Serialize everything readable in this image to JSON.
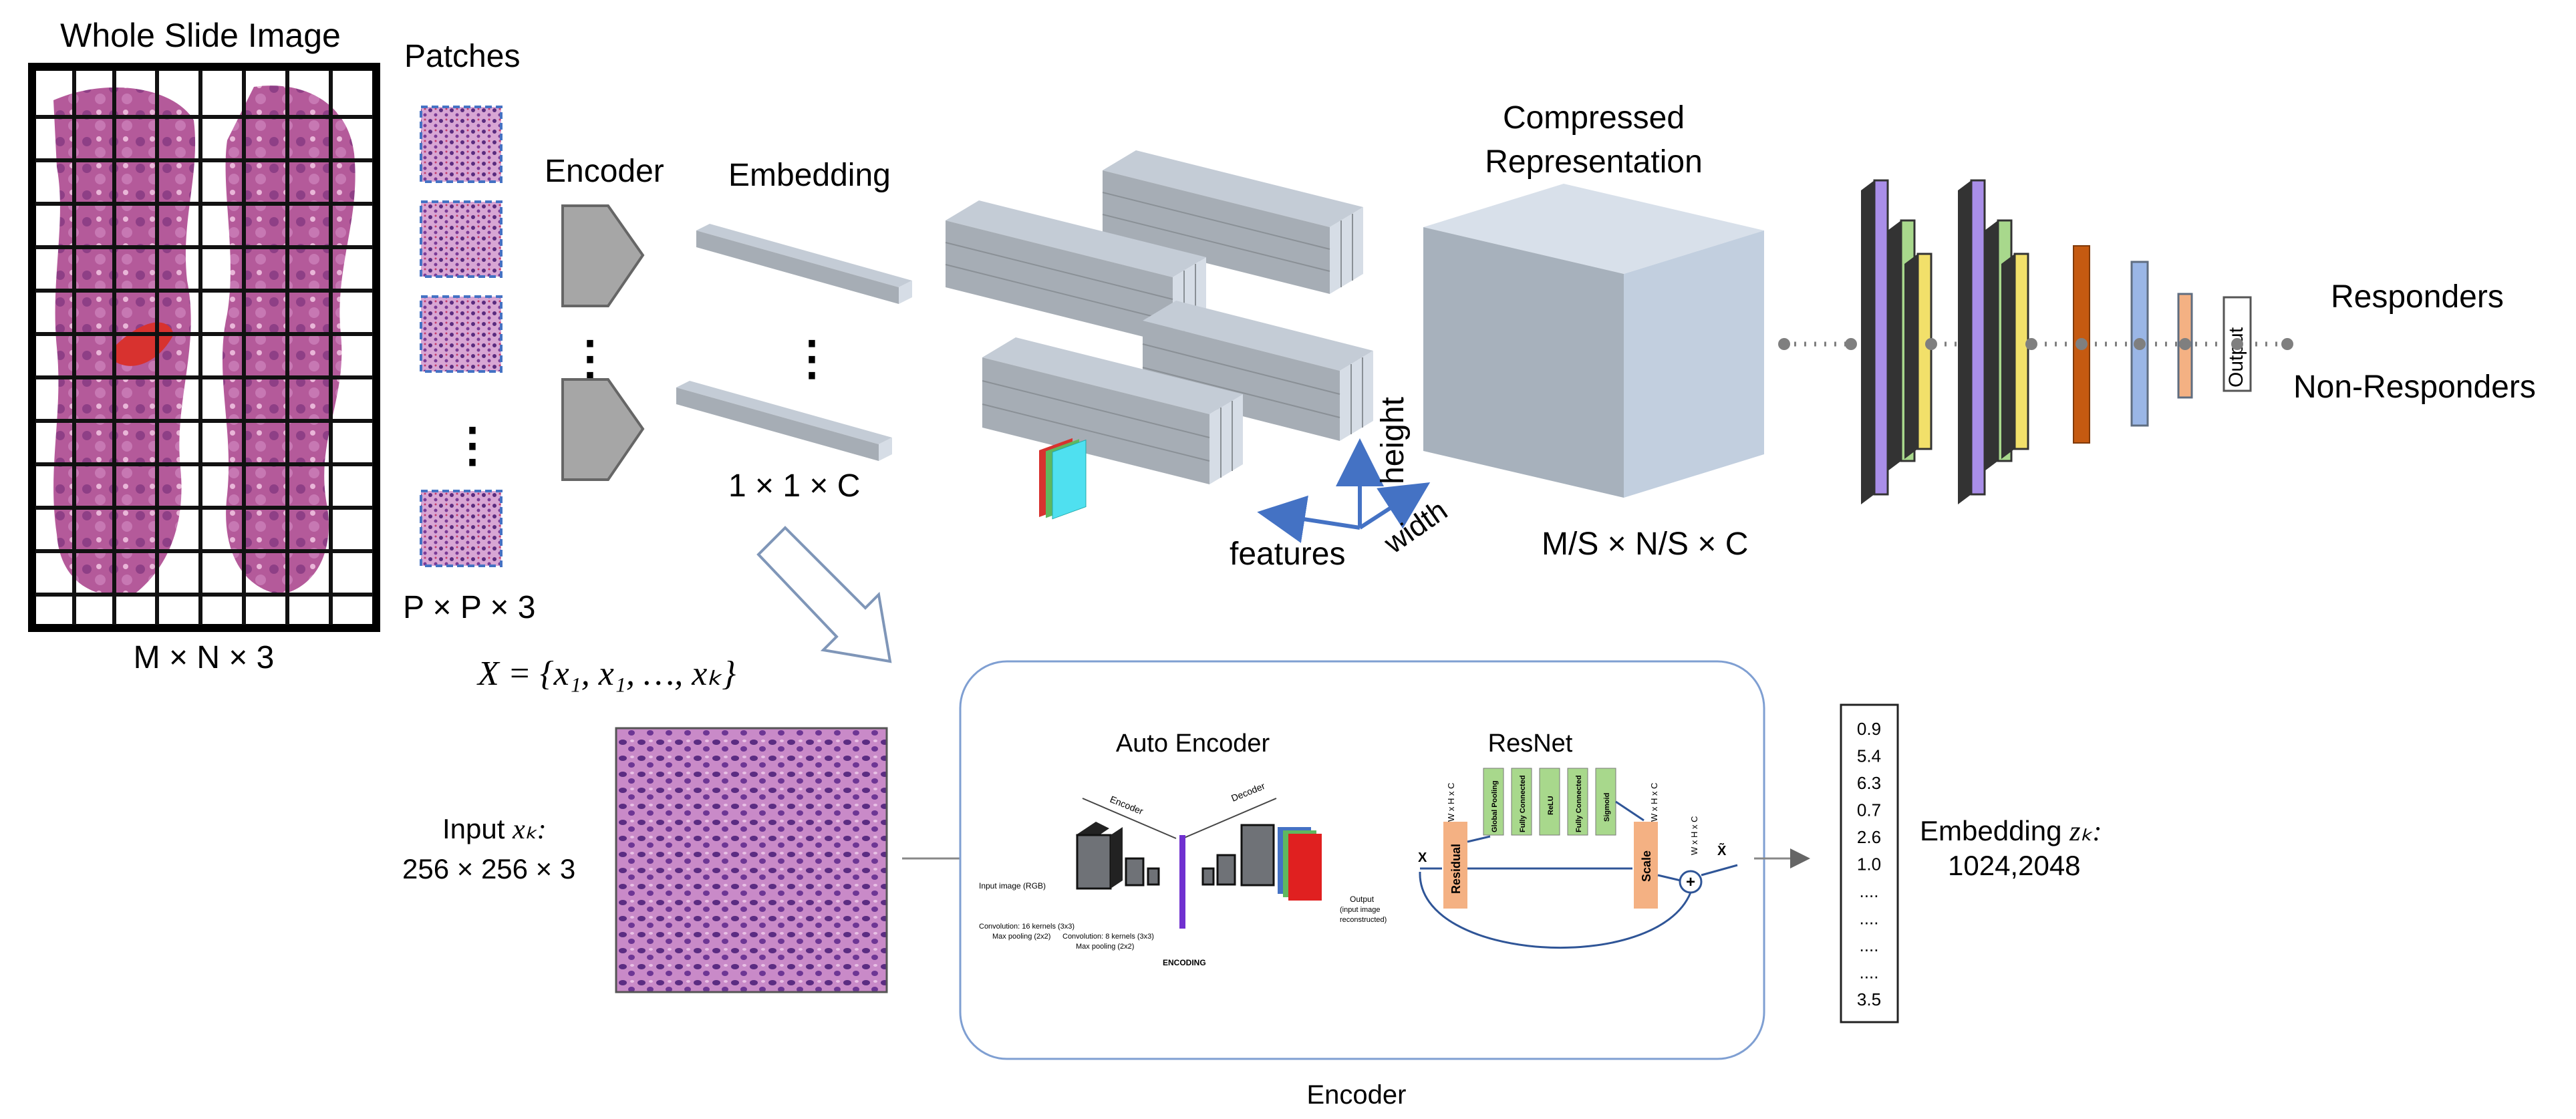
{
  "top": {
    "wsi_title": "Whole Slide Image",
    "wsi_dims": "M × N × 3",
    "patches_title": "Patches",
    "patch_dims": "P × P × 3",
    "encoder_label": "Encoder",
    "embedding_label": "Embedding",
    "embedding_dims": "1 × 1 × C",
    "dots": "⋮",
    "axis_height": "height",
    "axis_width": "width",
    "axis_features": "features",
    "compressed_line1": "Compressed",
    "compressed_line2": "Representation",
    "compressed_dims": "M/S × N/S × C",
    "output_label": "Output",
    "responders": "Responders",
    "non_responders": "Non-Responders"
  },
  "bottom": {
    "set_formula": "X = {x₁, x₁, …, xₖ}",
    "input_label": "Input ",
    "input_symbol": "xₖ:",
    "input_dims": "256 ×  256 × 3",
    "auto_encoder_title": "Auto Encoder",
    "resnet_title": "ResNet",
    "encoder_box_caption": "Encoder",
    "ae_small": {
      "encoder": "Encoder",
      "decoder": "Decoder",
      "input_image": "Input image (RGB)",
      "conv1": "Convolution: 16 kernels (3x3)",
      "pool1": "Max pooling (2x2)",
      "conv2": "Convolution: 8 kernels (3x3)",
      "pool2": "Max pooling (2x2)",
      "encoding": "ENCODING",
      "output_1": "Output",
      "output_2": "(input image",
      "output_3": "reconstructed)"
    },
    "resnet_small": {
      "whc": "W x H x C",
      "global_pooling": "Global Pooling",
      "fc1": "Fully Connected",
      "relu": "ReLU",
      "fc2": "Fully Connected",
      "sigmoid": "Sigmoid",
      "residual": "Residual",
      "scale": "Scale",
      "x_in": "X",
      "x_out": "X̃",
      "plus": "+"
    },
    "embedding_values": [
      "0.9",
      "5.4",
      "6.3",
      "0.7",
      "2.6",
      "1.0",
      "....",
      "....",
      "....",
      "....",
      "3.5"
    ],
    "embedding_label": "Embedding ",
    "embedding_symbol": "zₖ:",
    "embedding_dims": "1024,2048"
  },
  "colors": {
    "slide_border": "#000000",
    "tissue": "#b45a9a",
    "grid": "#111111",
    "patch_border": "#4472c4",
    "block_gray": "#a3a8ad",
    "cube_front": "#aab4bf",
    "cube_side": "#c4cfdc",
    "axis_blue": "#4472c4",
    "purple": "#a98ee8",
    "green": "#a8d88c",
    "yellow": "#f2e06a",
    "dark_gray": "#555a60",
    "orange": "#c55a11",
    "blue_bar": "#9ab6e6",
    "salmon": "#f4b183"
  }
}
